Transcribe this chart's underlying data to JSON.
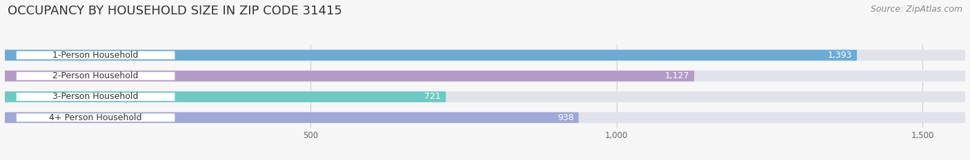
{
  "title": "OCCUPANCY BY HOUSEHOLD SIZE IN ZIP CODE 31415",
  "source": "Source: ZipAtlas.com",
  "categories": [
    "1-Person Household",
    "2-Person Household",
    "3-Person Household",
    "4+ Person Household"
  ],
  "values": [
    1393,
    1127,
    721,
    938
  ],
  "bar_colors": [
    "#6aacd5",
    "#b39bc8",
    "#6ec9c4",
    "#a0a8d8"
  ],
  "xlim_max": 1570,
  "xticks": [
    500,
    1000,
    1500
  ],
  "title_fontsize": 13,
  "source_fontsize": 9,
  "label_fontsize": 9,
  "value_fontsize": 9,
  "background_color": "#f7f7f7",
  "bar_background_color": "#e2e2ea",
  "bar_height": 0.52,
  "label_text_color": "#333333",
  "value_color_inside": "#ffffff",
  "value_color_outside": "#666666",
  "grid_color": "#cccccc",
  "tick_color": "#666666",
  "title_color": "#333333",
  "source_color": "#888888"
}
